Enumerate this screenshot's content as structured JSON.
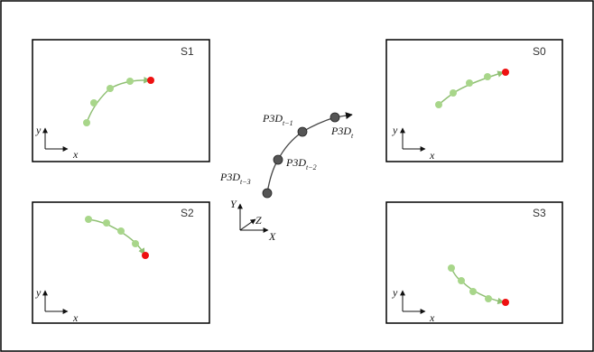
{
  "panels": [
    {
      "id": "S1",
      "label": "S1"
    },
    {
      "id": "S0",
      "label": "S0"
    },
    {
      "id": "S2",
      "label": "S2"
    },
    {
      "id": "S3",
      "label": "S3"
    }
  ],
  "axes_2d": {
    "x": "x",
    "y": "y"
  },
  "axes_3d": {
    "x": "X",
    "y": "Y",
    "z": "Z"
  },
  "points_3d": [
    {
      "base": "P3D",
      "sub": "t−3"
    },
    {
      "base": "P3D",
      "sub": "t−2"
    },
    {
      "base": "P3D",
      "sub": "t−1"
    },
    {
      "base": "P3D",
      "sub": "t"
    }
  ],
  "colors": {
    "track_point": "#a8d68a",
    "track_line": "#8fbf73",
    "current_point": "#ee1111",
    "point_3d": "#555555",
    "frame": "#000000"
  }
}
